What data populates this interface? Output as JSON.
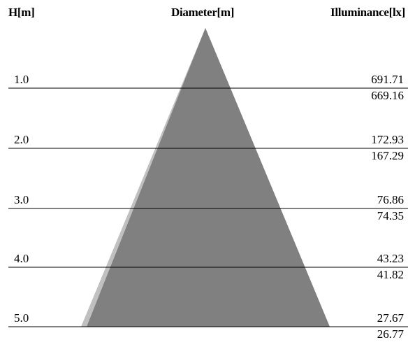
{
  "headers": {
    "height": "H[m]",
    "diameter": "Diameter[m]",
    "illuminance": "Illuminance[lx]"
  },
  "colors": {
    "cone_main": "#808080",
    "cone_shadow": "#c0c0c0",
    "line": "#000000"
  },
  "rows": [
    {
      "height": "1.0",
      "lux_upper": "691.71",
      "lux_lower": "669.16"
    },
    {
      "height": "2.0",
      "lux_upper": "172.93",
      "lux_lower": "167.29"
    },
    {
      "height": "3.0",
      "lux_upper": "76.86",
      "lux_lower": "74.35"
    },
    {
      "height": "4.0",
      "lux_upper": "43.23",
      "lux_lower": "41.82"
    },
    {
      "height": "5.0",
      "lux_upper": "27.67",
      "lux_lower": "26.77"
    }
  ]
}
